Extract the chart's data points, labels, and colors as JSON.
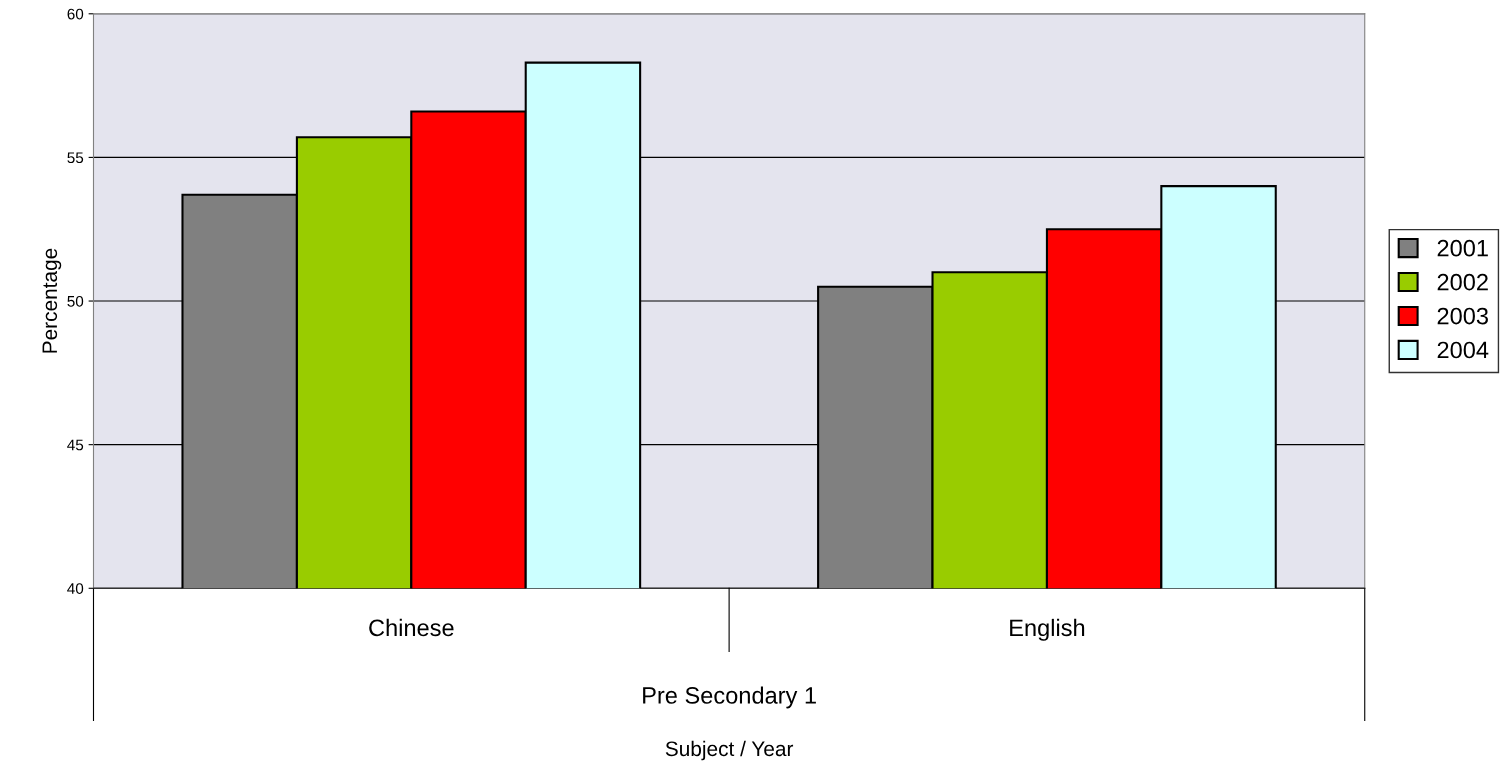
{
  "chart_data": {
    "type": "bar",
    "xlabel": "Subject / Year",
    "ylabel": "Percentage",
    "categories": [
      "Chinese",
      "English"
    ],
    "annotations": [
      "Pre Secondary 1"
    ],
    "series": [
      {
        "name": "2001",
        "color": "#808080",
        "values": [
          53.7,
          50.5
        ]
      },
      {
        "name": "2002",
        "color": "#99cc00",
        "values": [
          55.7,
          51.0
        ]
      },
      {
        "name": "2003",
        "color": "#ff0000",
        "values": [
          56.6,
          52.5
        ]
      },
      {
        "name": "2004",
        "color": "#ccffff",
        "values": [
          58.3,
          54.0
        ]
      }
    ],
    "ylim": [
      40,
      60
    ],
    "yticks": [
      40,
      45,
      50,
      55,
      60
    ],
    "grid": "y",
    "legend": "right"
  }
}
